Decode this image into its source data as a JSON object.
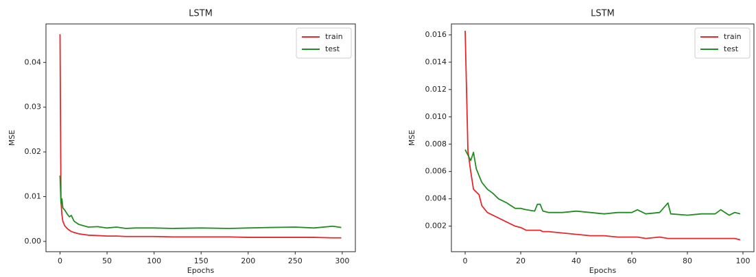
{
  "chart_data": [
    {
      "type": "line",
      "title": "LSTM",
      "x_label": "Epochs",
      "y_label": "MSE",
      "x": [
        0,
        1,
        2,
        3,
        5,
        8,
        10,
        12,
        15,
        20,
        30,
        40,
        50,
        60,
        70,
        80,
        100,
        120,
        150,
        180,
        200,
        220,
        250,
        270,
        290,
        299
      ],
      "series": [
        {
          "name": "train",
          "color": "#e8262a",
          "values": [
            0.0463,
            0.009,
            0.006,
            0.0045,
            0.0035,
            0.0028,
            0.0025,
            0.0022,
            0.002,
            0.0017,
            0.0014,
            0.0013,
            0.0012,
            0.0012,
            0.0011,
            0.0011,
            0.0011,
            0.001,
            0.001,
            0.001,
            0.0009,
            0.0009,
            0.0009,
            0.0009,
            0.0008,
            0.0008
          ]
        },
        {
          "name": "test",
          "color": "#1e8c1e",
          "values": [
            0.0147,
            0.0085,
            0.0095,
            0.0075,
            0.007,
            0.006,
            0.0055,
            0.0058,
            0.0045,
            0.0038,
            0.0032,
            0.0033,
            0.003,
            0.0032,
            0.0029,
            0.003,
            0.003,
            0.0029,
            0.003,
            0.0029,
            0.003,
            0.0031,
            0.0032,
            0.003,
            0.0034,
            0.0031
          ]
        }
      ],
      "xlim": [
        -14.95,
        313.95
      ],
      "xticks": [
        0,
        50,
        100,
        150,
        200,
        250,
        300
      ],
      "ylim": [
        -0.0023,
        0.0486
      ],
      "yticks": [
        {
          "value": 0,
          "label": "0.00"
        },
        0.01,
        0.02,
        0.03,
        0.04
      ],
      "grid": false,
      "legend": "upper right"
    },
    {
      "type": "line",
      "title": "LSTM",
      "x_label": "Epochs",
      "y_label": "MSE",
      "x": [
        0,
        1,
        2,
        3,
        4,
        5,
        6,
        8,
        10,
        12,
        15,
        18,
        20,
        22,
        25,
        26,
        27,
        28,
        30,
        35,
        40,
        45,
        50,
        55,
        60,
        62,
        65,
        70,
        73,
        74,
        80,
        85,
        90,
        92,
        95,
        97,
        99
      ],
      "series": [
        {
          "name": "train",
          "color": "#e8262a",
          "values": [
            0.0163,
            0.0075,
            0.006,
            0.0047,
            0.0045,
            0.0043,
            0.0035,
            0.003,
            0.0028,
            0.0026,
            0.0023,
            0.002,
            0.0019,
            0.0017,
            0.0017,
            0.0017,
            0.0017,
            0.0016,
            0.0016,
            0.0015,
            0.0014,
            0.0013,
            0.0013,
            0.0012,
            0.0012,
            0.0012,
            0.0011,
            0.0012,
            0.0011,
            0.0011,
            0.0011,
            0.0011,
            0.0011,
            0.0011,
            0.0011,
            0.0011,
            0.001
          ]
        },
        {
          "name": "test",
          "color": "#1e8c1e",
          "values": [
            0.0076,
            0.0072,
            0.0068,
            0.0074,
            0.0062,
            0.0057,
            0.0052,
            0.0047,
            0.0044,
            0.004,
            0.0037,
            0.0033,
            0.0033,
            0.0032,
            0.0031,
            0.0036,
            0.0036,
            0.0031,
            0.003,
            0.003,
            0.0031,
            0.003,
            0.0029,
            0.003,
            0.003,
            0.0032,
            0.0029,
            0.003,
            0.0037,
            0.0029,
            0.0028,
            0.0029,
            0.0029,
            0.0032,
            0.0028,
            0.003,
            0.0029
          ]
        }
      ],
      "xlim": [
        -4.95,
        103.95
      ],
      "xticks": [
        0,
        20,
        40,
        60,
        80,
        100
      ],
      "ylim": [
        0.00013,
        0.0168
      ],
      "yticks": [
        {
          "value": 0.002,
          "label": "0.002"
        },
        {
          "value": 0.004,
          "label": "0.004"
        },
        {
          "value": 0.006,
          "label": "0.006"
        },
        {
          "value": 0.008,
          "label": "0.008"
        },
        {
          "value": 0.01,
          "label": "0.010"
        },
        {
          "value": 0.012,
          "label": "0.012"
        },
        {
          "value": 0.014,
          "label": "0.014"
        },
        {
          "value": 0.016,
          "label": "0.016"
        }
      ],
      "grid": false,
      "legend": "upper right"
    }
  ]
}
